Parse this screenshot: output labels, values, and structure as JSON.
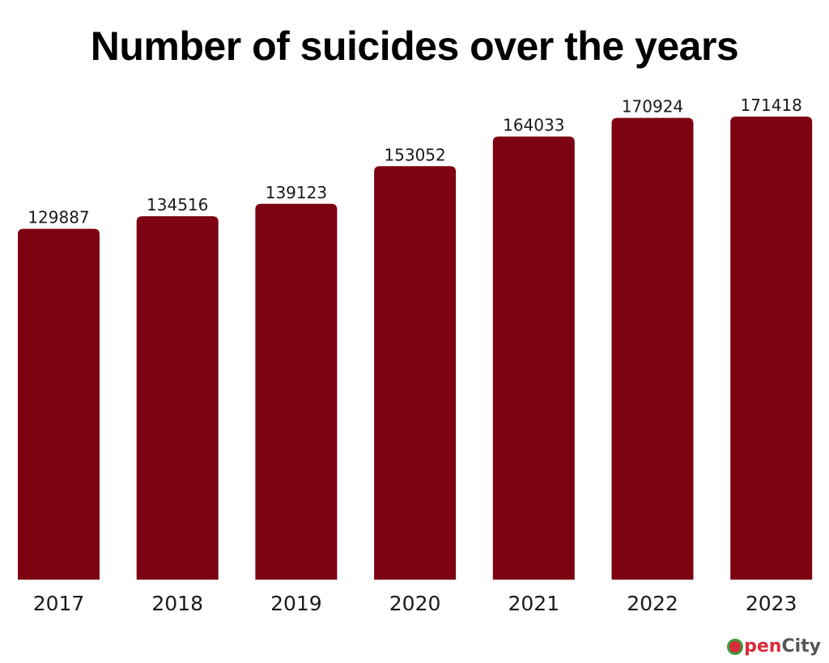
{
  "title": "Number of suicides over the years",
  "colors": {
    "bar": "#7d0312",
    "text": "#1a1a1a"
  },
  "chart_data": {
    "type": "bar",
    "title": "Number of suicides over the years",
    "xlabel": "",
    "ylabel": "",
    "categories": [
      "2017",
      "2018",
      "2019",
      "2020",
      "2021",
      "2022",
      "2023"
    ],
    "values": [
      129887,
      134516,
      139123,
      153052,
      164033,
      170924,
      171418
    ],
    "ylim": [
      0,
      171418
    ],
    "grid": false,
    "legend": "none",
    "data_labels": true
  },
  "logo": {
    "text_o": "O",
    "text_pen": "pen",
    "text_city": "City"
  }
}
